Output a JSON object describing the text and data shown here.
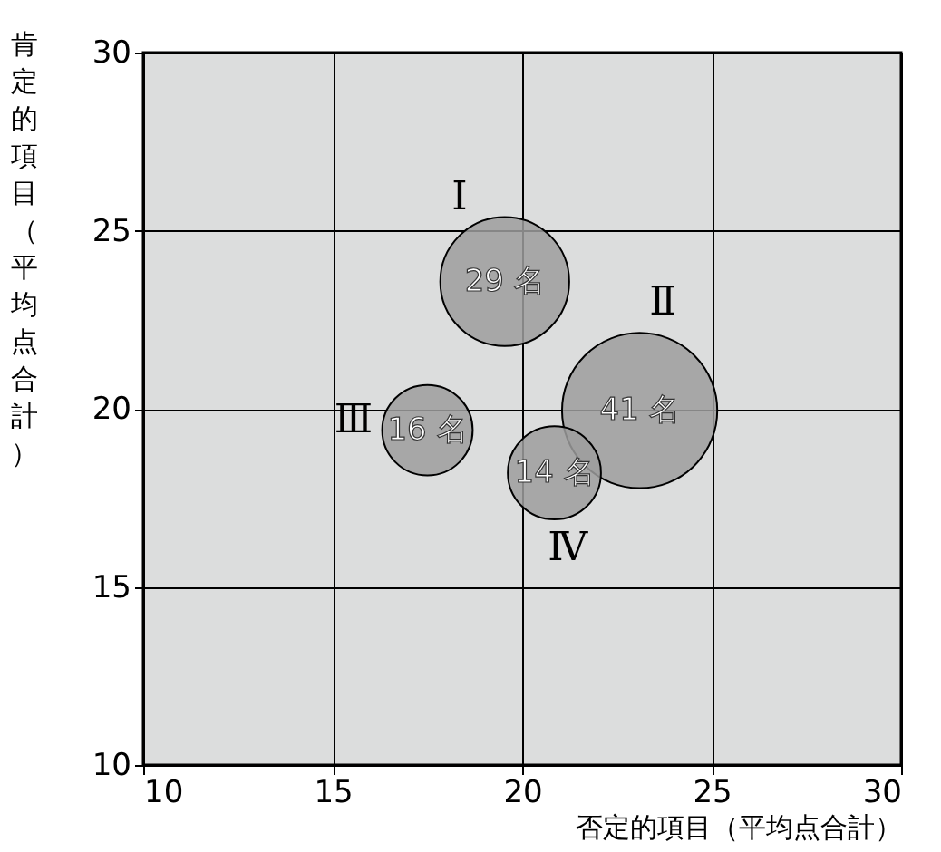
{
  "chart_data": {
    "type": "bubble",
    "xlabel": "否定的項目（平均点合計）",
    "ylabel": "肯定的項目（平均点合計）",
    "x": [
      19.54,
      23.1,
      17.5,
      20.85
    ],
    "values": [
      23.57,
      19.95,
      19.4,
      18.2
    ],
    "sizes": [
      0.69,
      1,
      0.34,
      0.36
    ],
    "color": "#9e9e9e",
    "xlim": [
      10,
      30
    ],
    "ylim": [
      10,
      30
    ],
    "xticks": [
      10,
      15,
      20,
      25,
      30
    ],
    "yticks": [
      10,
      15,
      20,
      25,
      30
    ],
    "grid": true,
    "legend": false,
    "marker": "circle",
    "annotations": [
      {
        "text": "29 名",
        "x": 19.54,
        "y": 23.57
      },
      {
        "text": "41 名",
        "x": 23.1,
        "y": 19.95
      },
      {
        "text": "16 名",
        "x": 17.5,
        "y": 19.4
      },
      {
        "text": "14 名",
        "x": 20.85,
        "y": 18.2
      },
      "Ⅰ",
      "Ⅱ",
      "Ⅲ",
      "Ⅳ"
    ]
  }
}
